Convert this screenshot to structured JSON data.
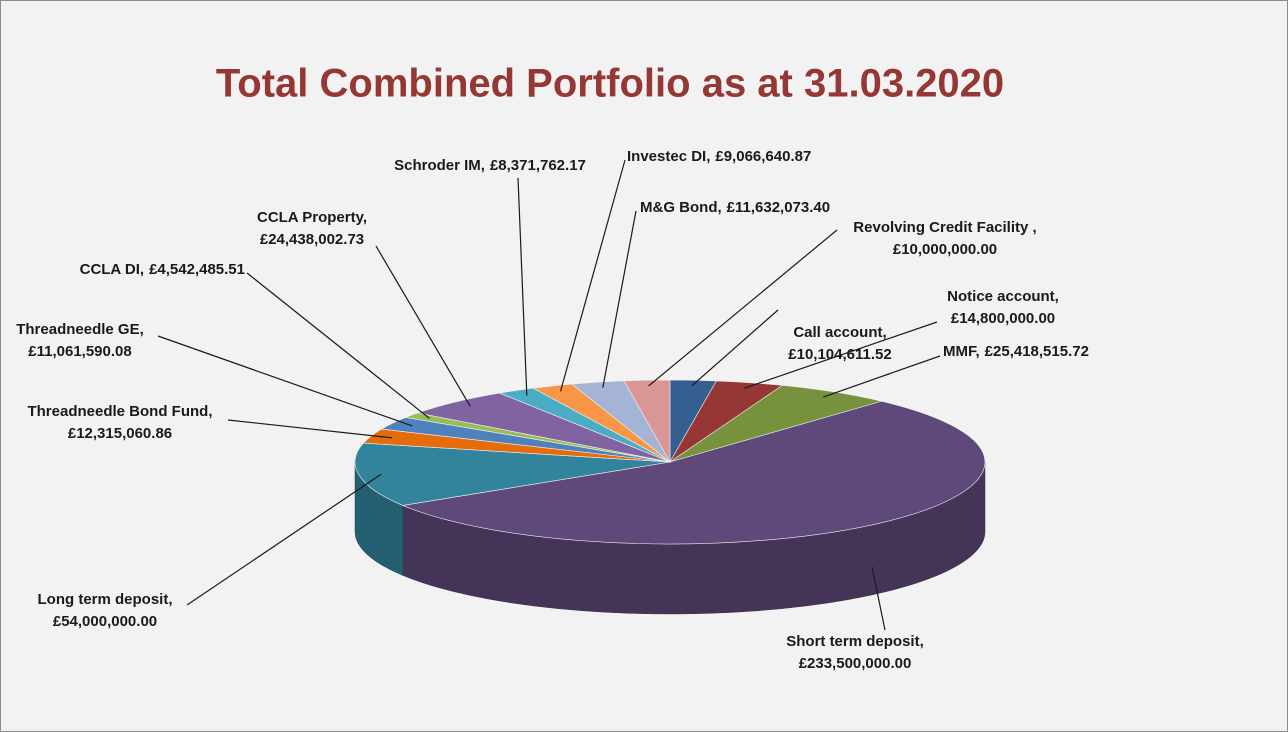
{
  "chart_data": {
    "type": "pie3d",
    "title": "Total Combined Portfolio as at 31.03.2020",
    "categories": [
      "Call account,",
      "Notice account,",
      "MMF,",
      "Short term deposit,",
      "Long term deposit,",
      "Threadneedle Bond Fund,",
      "Threadneedle GE,",
      "CCLA DI,",
      "CCLA Property,",
      "Schroder IM,",
      "Investec DI,",
      "M&G Bond,",
      "Revolving Credit Facility ,"
    ],
    "values": [
      10104611.52,
      14800000,
      25418515.72,
      233500000,
      54000000,
      12315060.86,
      11061590.08,
      4542485.51,
      24438002.73,
      8371762.17,
      9066640.87,
      11632073.4,
      10000000
    ],
    "value_labels": [
      "£10,104,611.52",
      "£14,800,000.00",
      "£25,418,515.72",
      "£233,500,000.00",
      "£54,000,000.00",
      "£12,315,060.86",
      "£11,061,590.08",
      "£4,542,485.51",
      "£24,438,002.73",
      "£8,371,762.17",
      "£9,066,640.87",
      "£11,632,073.40",
      "£10,000,000.00"
    ],
    "colors": [
      "#365f91",
      "#953735",
      "#76923c",
      "#5f497a",
      "#31849b",
      "#e46c0a",
      "#4f81bd",
      "#9bbb59",
      "#8064a2",
      "#4bacc6",
      "#f79646",
      "#a5b4d4",
      "#d99694"
    ]
  }
}
